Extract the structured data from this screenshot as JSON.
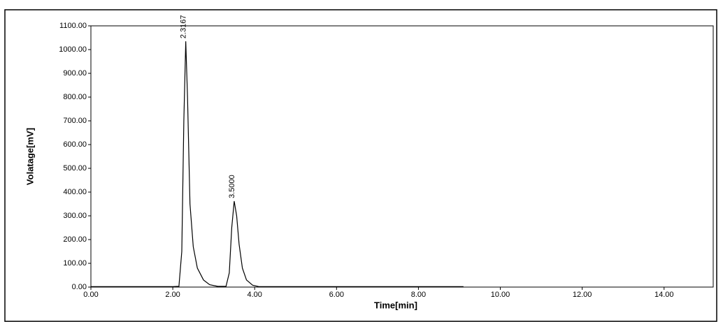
{
  "chart_data": {
    "type": "line",
    "x_label": "Time[min]",
    "y_label": "Volatage[mV]",
    "xlim": [
      0,
      15.2
    ],
    "ylim": [
      0,
      1100
    ],
    "xticks": [
      {
        "value": 0,
        "label": "0.00"
      },
      {
        "value": 2,
        "label": "2.00"
      },
      {
        "value": 4,
        "label": "4.00"
      },
      {
        "value": 6,
        "label": "6.00"
      },
      {
        "value": 8,
        "label": "8.00"
      },
      {
        "value": 10,
        "label": "10.00"
      },
      {
        "value": 12,
        "label": "12.00"
      },
      {
        "value": 14,
        "label": "14.00"
      }
    ],
    "yticks": [
      {
        "value": 0,
        "label": "0.00"
      },
      {
        "value": 100,
        "label": "100.00"
      },
      {
        "value": 200,
        "label": "200.00"
      },
      {
        "value": 300,
        "label": "300.00"
      },
      {
        "value": 400,
        "label": "400.00"
      },
      {
        "value": 500,
        "label": "500.00"
      },
      {
        "value": 600,
        "label": "600.00"
      },
      {
        "value": 700,
        "label": "700.00"
      },
      {
        "value": 800,
        "label": "800.00"
      },
      {
        "value": 900,
        "label": "900.00"
      },
      {
        "value": 1000,
        "label": "1000.00"
      },
      {
        "value": 1100,
        "label": "1100.00"
      }
    ],
    "x": [
      0,
      2.0,
      2.15,
      2.22,
      2.27,
      2.3167,
      2.36,
      2.42,
      2.5,
      2.6,
      2.75,
      2.9,
      3.1,
      3.3,
      3.38,
      3.44,
      3.5,
      3.56,
      3.62,
      3.7,
      3.8,
      3.95,
      4.1,
      6,
      9.1
    ],
    "series": [
      {
        "color": "#000000",
        "values": [
          2,
          2,
          3,
          150,
          700,
          1035,
          800,
          350,
          170,
          80,
          30,
          10,
          3,
          3,
          60,
          250,
          362,
          300,
          180,
          80,
          30,
          8,
          2,
          2,
          2
        ]
      }
    ],
    "annotations": [
      {
        "label": "2.3167",
        "x": 2.3167,
        "y": 1035
      },
      {
        "label": "3.5000",
        "x": 3.5,
        "y": 362
      }
    ]
  }
}
